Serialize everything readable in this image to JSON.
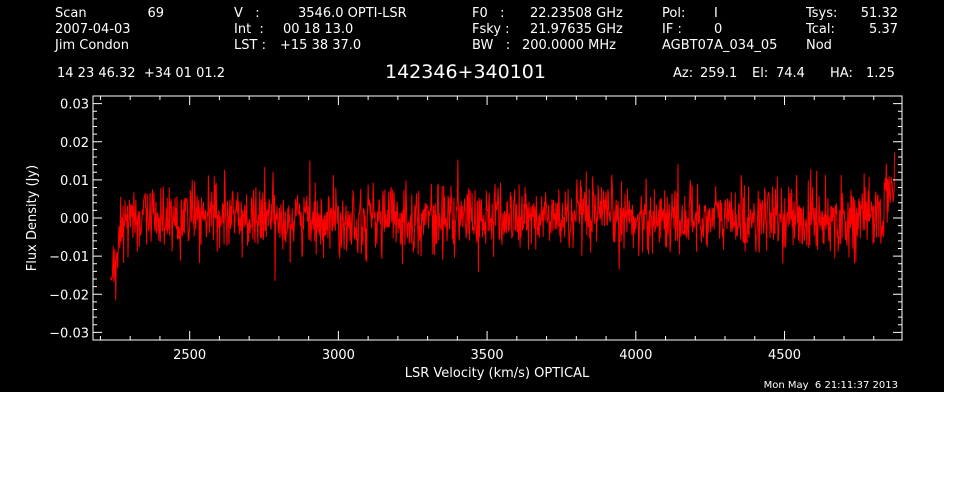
{
  "header": {
    "scan_label": "Scan",
    "scan_number": "69",
    "date": "2007-04-03",
    "observer": "Jim Condon",
    "velocity_label": "V   :",
    "velocity_value": "3546.0 OPTI-LSR",
    "int_label": "Int  :",
    "int_value": "00 18 13.0",
    "lst_label": "LST :",
    "lst_value": "+15 38 37.0",
    "f0_label": "F0   :",
    "f0_value": "22.23508 GHz",
    "fsky_label": "Fsky :",
    "fsky_value": "21.97635 GHz",
    "bw_label": "BW   :",
    "bw_value": "200.0000 MHz",
    "pol_label": "Pol:",
    "pol_value": "I",
    "if_label": "IF :",
    "if_value": "0",
    "project": "AGBT07A_034_05",
    "tsys_label": "Tsys:",
    "tsys_value": "51.32",
    "tcal_label": "Tcal:",
    "tcal_value": "5.37",
    "mode": "Nod",
    "coordinates": "14 23 46.32  +34 01 01.2",
    "object": "142346+340101",
    "az_label": "Az:",
    "az_value": "259.1",
    "el_label": "El:",
    "el_value": "74.4",
    "ha_label": "HA:",
    "ha_value": "1.25",
    "timestamp": "Mon May  6 21:11:37 2013"
  },
  "colors": {
    "background": "#000000",
    "axes": "#ffffff",
    "trace": "#ff0000"
  },
  "chart_data": {
    "type": "line",
    "title": "142346+340101",
    "xlabel": "LSR Velocity (km/s) OPTICAL",
    "ylabel": "Flux Density (Jy)",
    "xlim": [
      2175,
      4895
    ],
    "ylim": [
      -0.032,
      0.032
    ],
    "xticks_major": [
      2500,
      3000,
      3500,
      4000,
      4500
    ],
    "xtick_labels": [
      "2500",
      "3000",
      "3500",
      "4000",
      "4500"
    ],
    "xticks_minor_step": 100,
    "yticks_major": [
      -0.03,
      -0.02,
      -0.01,
      0.0,
      0.01,
      0.02,
      0.03
    ],
    "ytick_labels": [
      "−0.03",
      "−0.02",
      "−0.01",
      "0.00",
      "0.01",
      "0.02",
      "0.03"
    ],
    "yticks_minor_step": 0.002,
    "grid": false,
    "legend": "none",
    "series": [
      {
        "x_start": 2235,
        "x_end": 4870,
        "n_points": 1600,
        "noise_rms_jy": 0.0045,
        "values_note_points": [
          {
            "x": 2235,
            "y": -0.018
          },
          {
            "x": 2250,
            "y": -0.015
          },
          {
            "x": 2265,
            "y": -0.006
          },
          {
            "x": 2280,
            "y": 0.0
          },
          {
            "x": 4800,
            "y": 0.0
          },
          {
            "x": 4840,
            "y": 0.003
          },
          {
            "x": 4870,
            "y": 0.012
          }
        ]
      }
    ]
  }
}
